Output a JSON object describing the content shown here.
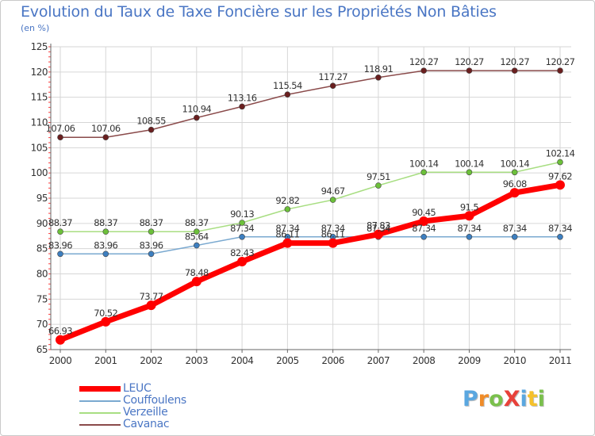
{
  "title": "Evolution du Taux de Taxe Foncière sur les Propriétés Non Bâties",
  "subtitle": "(en %)",
  "logo": {
    "text": "ProXiti",
    "letters": [
      {
        "char": "P",
        "color": "#5aa7e0"
      },
      {
        "char": "r",
        "color": "#f08c28"
      },
      {
        "char": "o",
        "color": "#7ac04c"
      },
      {
        "char": "X",
        "color": "#e8413a"
      },
      {
        "char": "i",
        "color": "#5aa7e0"
      },
      {
        "char": "t",
        "color": "#f5c12b"
      },
      {
        "char": "i",
        "color": "#7ac04c"
      }
    ]
  },
  "chart_data": {
    "type": "line",
    "title": "Evolution du Taux de Taxe Foncière sur les Propriétés Non Bâties",
    "ylabel": "(en %)",
    "xlabel": "",
    "categories": [
      "2000",
      "2001",
      "2002",
      "2003",
      "2004",
      "2005",
      "2006",
      "2007",
      "2008",
      "2009",
      "2010",
      "2011"
    ],
    "ylim": [
      65,
      125
    ],
    "yticks": [
      "65",
      "70",
      "75",
      "80",
      "85",
      "90",
      "95",
      "100",
      "105",
      "110",
      "115",
      "120",
      "125"
    ],
    "grid": true,
    "series": [
      {
        "name": "LEUC",
        "color": "#ff0000",
        "marker_color": "#ff0000",
        "thick": true,
        "values": [
          66.93,
          70.52,
          73.77,
          78.48,
          82.43,
          86.11,
          86.11,
          87.83,
          90.45,
          91.5,
          96.08,
          97.62
        ],
        "labels": [
          "66.93",
          "70.52",
          "73.77",
          "78.48",
          "82.43",
          "86.11",
          "86.11",
          "87.83",
          "90.45",
          "91.5",
          "96.08",
          "97.62"
        ]
      },
      {
        "name": "Couffoulens",
        "color": "#7aa9d0",
        "marker_color": "#3d7fc0",
        "thick": false,
        "values": [
          83.96,
          83.96,
          83.96,
          85.64,
          87.34,
          87.34,
          87.34,
          87.34,
          87.34,
          87.34,
          87.34,
          87.34
        ],
        "labels": [
          "83.96",
          "83.96",
          "83.96",
          "85.64",
          "87.34",
          "87.34",
          "87.34",
          "87.34",
          "87.34",
          "87.34",
          "87.34",
          "87.34"
        ]
      },
      {
        "name": "Verzeille",
        "color": "#a8de82",
        "marker_color": "#6cc03a",
        "thick": false,
        "values": [
          88.37,
          88.37,
          88.37,
          88.37,
          90.13,
          92.82,
          94.67,
          97.51,
          100.14,
          100.14,
          100.14,
          102.14
        ],
        "labels": [
          "88.37",
          "88.37",
          "88.37",
          "88.37",
          "90.13",
          "92.82",
          "94.67",
          "97.51",
          "100.14",
          "100.14",
          "100.14",
          "102.14"
        ]
      },
      {
        "name": "Cavanac",
        "color": "#8a4a4a",
        "marker_color": "#6a1f1f",
        "thick": false,
        "values": [
          107.06,
          107.06,
          108.55,
          110.94,
          113.16,
          115.54,
          117.27,
          118.91,
          120.27,
          120.27,
          120.27,
          120.27
        ],
        "labels": [
          "107.06",
          "107.06",
          "108.55",
          "110.94",
          "113.16",
          "115.54",
          "117.27",
          "118.91",
          "120.27",
          "120.27",
          "120.27",
          "120.27"
        ]
      }
    ]
  }
}
